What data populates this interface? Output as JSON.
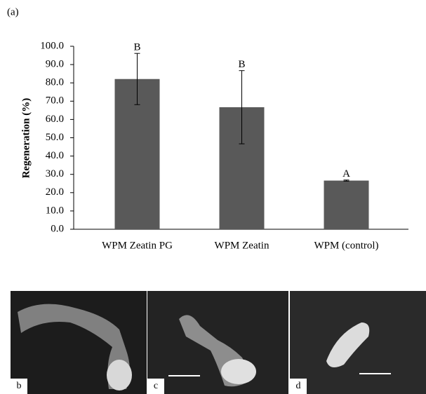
{
  "figure_label": "(a)",
  "chart_data": {
    "type": "bar",
    "ylabel": "Regeneration (%)",
    "categories": [
      "WPM Zeatin PG",
      "WPM Zeatin",
      "WPM  (control)"
    ],
    "values": [
      82.1,
      66.7,
      26.6
    ],
    "errors": [
      14.0,
      20.0,
      0.3
    ],
    "annotations": [
      "B",
      "B",
      "A"
    ],
    "color": "#595959",
    "ylim": [
      0,
      100
    ],
    "yticks": [
      {
        "value": 0,
        "label": "0.0"
      },
      {
        "value": 10,
        "label": "10.0"
      },
      {
        "value": 20,
        "label": "20.0"
      },
      {
        "value": 30,
        "label": "30.0"
      },
      {
        "value": 40,
        "label": "40.0"
      },
      {
        "value": 50,
        "label": "50.0"
      },
      {
        "value": 60,
        "label": "60.0"
      },
      {
        "value": 70,
        "label": "70.0"
      },
      {
        "value": 80,
        "label": "80.0"
      },
      {
        "value": 90,
        "label": "90.0"
      },
      {
        "value": 100,
        "label": "100.0"
      }
    ]
  },
  "panels": [
    {
      "label": "b"
    },
    {
      "label": "c"
    },
    {
      "label": "d"
    }
  ]
}
